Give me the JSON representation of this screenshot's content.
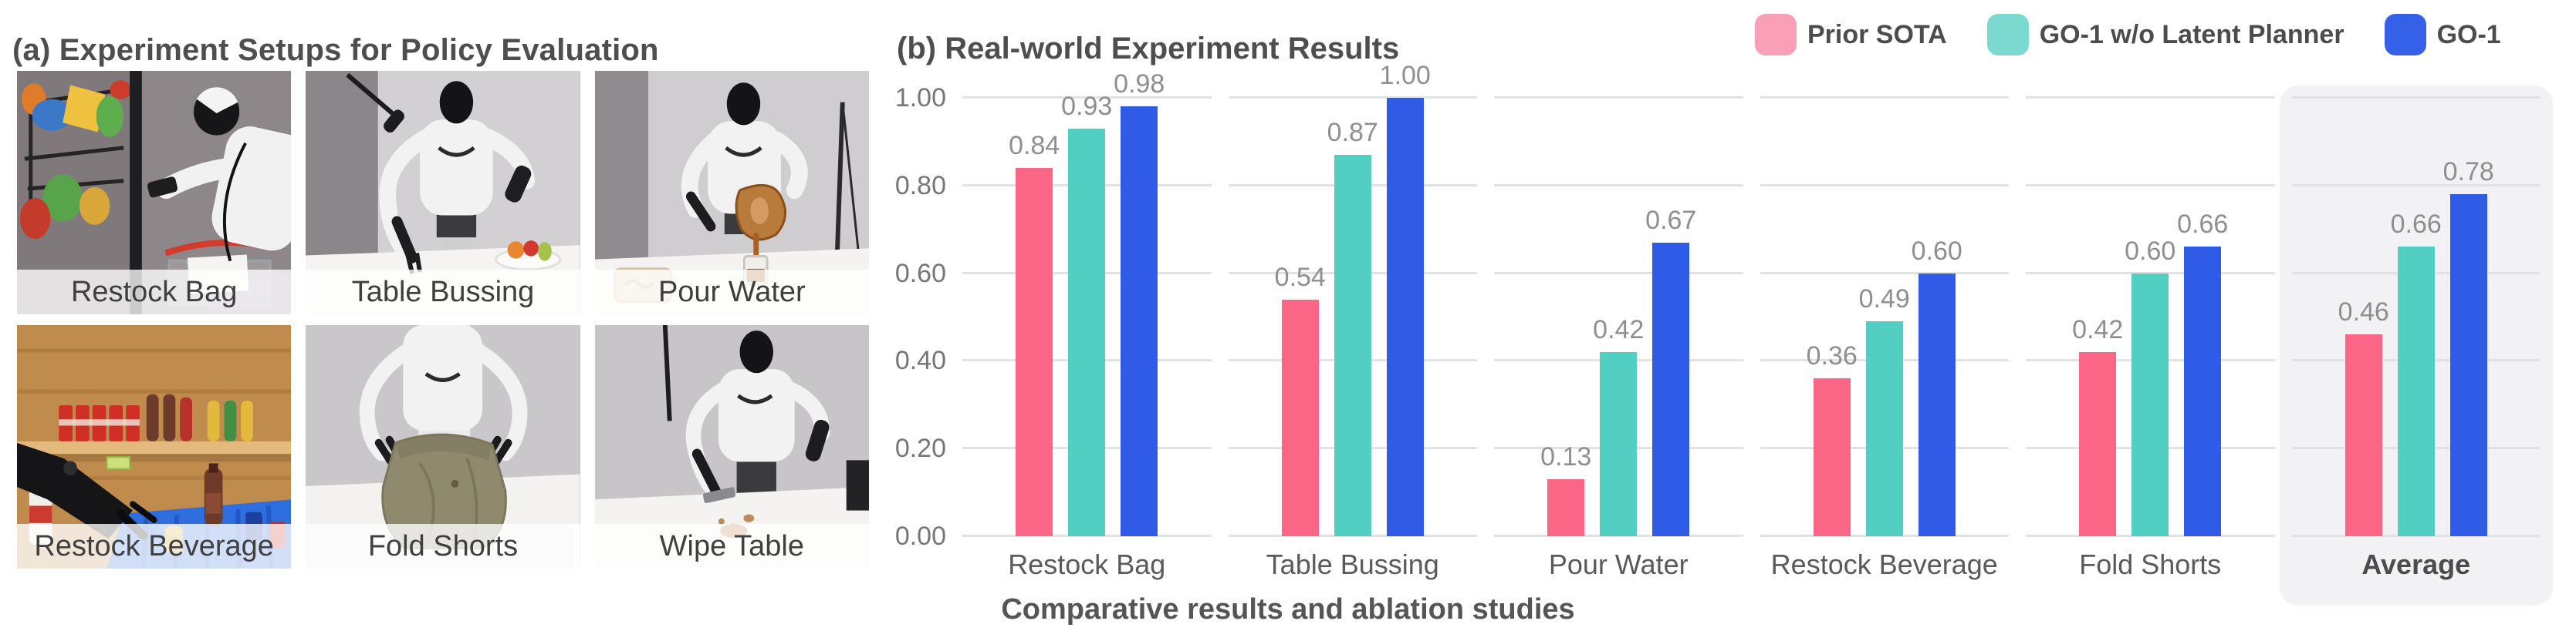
{
  "figure": {
    "caption": "Comparative results and ablation studies"
  },
  "left_panel": {
    "title": "(a) Experiment Setups for Policy Evaluation",
    "photos": [
      {
        "label": "Restock Bag"
      },
      {
        "label": "Table Bussing"
      },
      {
        "label": "Pour Water"
      },
      {
        "label": "Restock Beverage"
      },
      {
        "label": "Fold Shorts"
      },
      {
        "label": "Wipe Table"
      }
    ]
  },
  "right_panel": {
    "title": "(b) Real-world Experiment Results"
  },
  "chart_data": {
    "type": "bar",
    "title": "(b) Real-world Experiment Results",
    "xlabel": "",
    "ylabel": "",
    "categories": [
      "Restock Bag",
      "Table Bussing",
      "Pour Water",
      "Restock Beverage",
      "Fold Shorts",
      "Average"
    ],
    "series": [
      {
        "name": "Prior SOTA",
        "color": "#FB6687",
        "legend_color": "#F99FB6",
        "values": [
          0.84,
          0.54,
          0.13,
          0.36,
          0.42,
          0.46
        ]
      },
      {
        "name": "GO-1 w/o Latent Planner",
        "color": "#52CEC2",
        "legend_color": "#7CD9D0",
        "values": [
          0.93,
          0.87,
          0.42,
          0.49,
          0.6,
          0.66
        ]
      },
      {
        "name": "GO-1",
        "color": "#2F5BE6",
        "legend_color": "#3560E8",
        "values": [
          0.98,
          1.0,
          0.67,
          0.6,
          0.66,
          0.78
        ]
      }
    ],
    "ylim": [
      0,
      1
    ],
    "yticks": [
      0,
      0.2,
      0.4,
      0.6,
      0.8,
      1
    ],
    "ytick_labels": [
      "0.00",
      "0.20",
      "0.40",
      "0.60",
      "0.80",
      "1.00"
    ],
    "grid": true,
    "value_labels": true,
    "legend_position": "top-right",
    "highlighted_category": "Average",
    "highlight_color": "#F2F2F4",
    "gridline_color": "#E2E2E5"
  }
}
